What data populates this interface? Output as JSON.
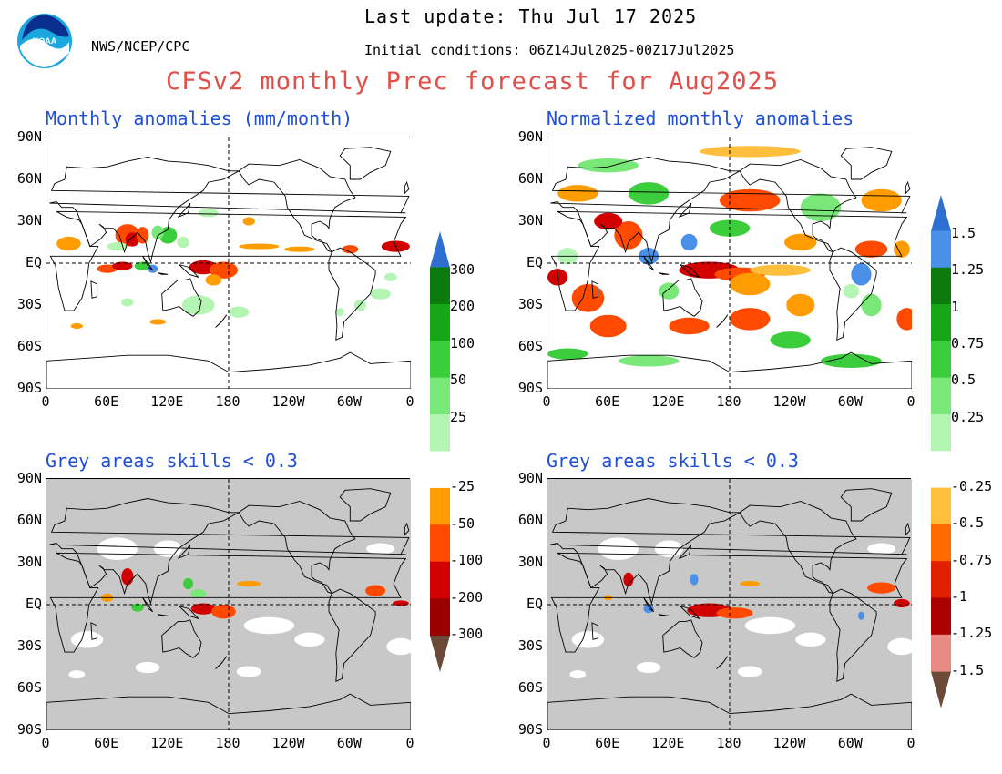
{
  "header": {
    "org": "NWS/NCEP/CPC",
    "logo_text": "NOAA",
    "last_update": "Last update: Thu Jul 17 2025",
    "initial_conditions": "Initial conditions: 06Z14Jul2025-00Z17Jul2025",
    "title": "CFSv2 monthly Prec forecast for Aug2025"
  },
  "axes": {
    "y_labels": [
      "90N",
      "60N",
      "30N",
      "EQ",
      "30S",
      "60S",
      "90S"
    ],
    "x_labels": [
      "0",
      "60E",
      "120E",
      "180",
      "120W",
      "60W",
      "0"
    ]
  },
  "panels": [
    {
      "id": "tl",
      "title": "Monthly anomalies (mm/month)",
      "grey": false
    },
    {
      "id": "tr",
      "title": "Normalized monthly anomalies",
      "grey": false
    },
    {
      "id": "bl",
      "title": "Grey areas skills < 0.3",
      "grey": true
    },
    {
      "id": "br",
      "title": "Grey areas skills < 0.3",
      "grey": true
    }
  ],
  "colorbars": {
    "mm": {
      "labels": [
        "300",
        "200",
        "100",
        "50",
        "25",
        "-25",
        "-50",
        "-100",
        "-200",
        "-300"
      ],
      "colors": [
        "#0c7a0c",
        "#17a617",
        "#3ccd3c",
        "#79e879",
        "#b4f5b4",
        "#ffffff",
        "#ff9d00",
        "#ff4a00",
        "#d20000",
        "#9a0000"
      ],
      "top_arrow": "#2f6fd0",
      "bottom_arrow": "#6b4a38"
    },
    "norm": {
      "labels": [
        "1.5",
        "1.25",
        "1",
        "0.75",
        "0.5",
        "0.25",
        "-0.25",
        "-0.5",
        "-0.75",
        "-1",
        "-1.25",
        "-1.5"
      ],
      "colors": [
        "#4a8fe8",
        "#0c7a0c",
        "#17a617",
        "#3ccd3c",
        "#79e879",
        "#b4f5b4",
        "#ffffff",
        "#ffbe3c",
        "#ff6a00",
        "#e02000",
        "#aa0000",
        "#e88a84"
      ],
      "top_arrow": "#2f6fd0",
      "bottom_arrow": "#6b4a38"
    }
  }
}
